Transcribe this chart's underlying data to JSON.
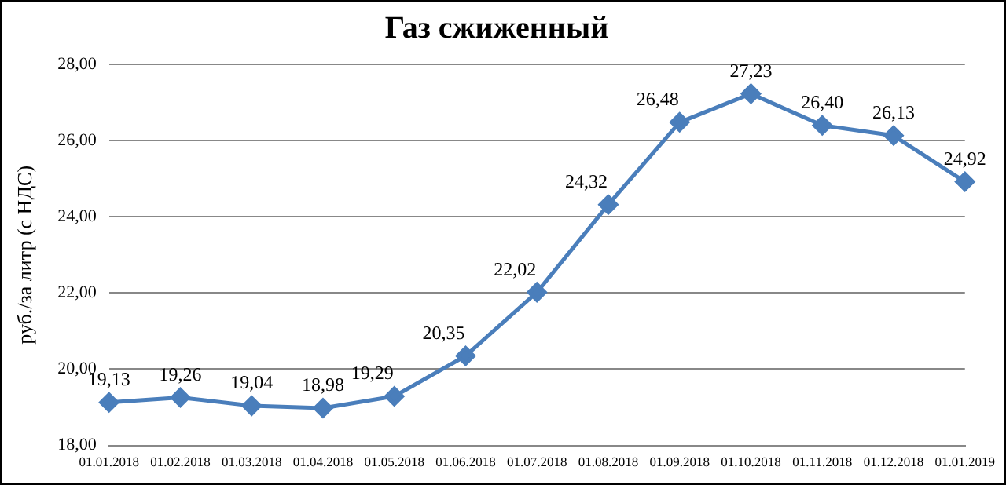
{
  "chart_data": {
    "type": "line",
    "title": "Газ сжиженный",
    "ylabel": "руб./за литр (с НДС)",
    "categories": [
      "01.01.2018",
      "01.02.2018",
      "01.03.2018",
      "01.04.2018",
      "01.05.2018",
      "01.06.2018",
      "01.07.2018",
      "01.08.2018",
      "01.09.2018",
      "01.10.2018",
      "01.11.2018",
      "01.12.2018",
      "01.01.2019"
    ],
    "series": [
      {
        "color": "#4a7ebb",
        "values": [
          19.13,
          19.26,
          19.04,
          18.98,
          19.29,
          20.35,
          22.02,
          24.32,
          26.48,
          27.23,
          26.4,
          26.13,
          24.92
        ],
        "value_labels": [
          "19,13",
          "19,26",
          "19,04",
          "18,98",
          "19,29",
          "20,35",
          "22,02",
          "24,32",
          "26,48",
          "27,23",
          "26,40",
          "26,13",
          "24,92"
        ]
      }
    ],
    "ylim": [
      18,
      28
    ],
    "yticks": [
      {
        "value": 18,
        "label": "18,00"
      },
      {
        "value": 20,
        "label": "20,00"
      },
      {
        "value": 22,
        "label": "22,00"
      },
      {
        "value": 24,
        "label": "24,00"
      },
      {
        "value": 26,
        "label": "26,00"
      },
      {
        "value": 28,
        "label": "28,00"
      }
    ],
    "grid": "y",
    "marker": "diamond",
    "line_style": "solid",
    "legend": false
  }
}
